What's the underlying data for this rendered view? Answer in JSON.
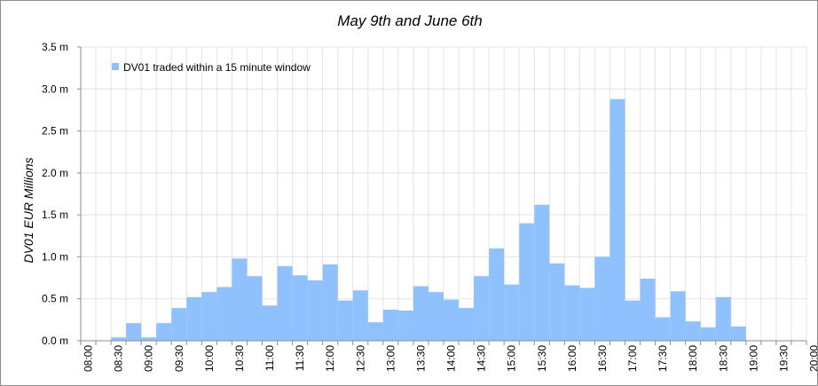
{
  "chart_data": {
    "type": "bar",
    "title": "May 9th and June 6th",
    "xlabel": "",
    "ylabel": "DV01 EUR Millions",
    "ylim": [
      0,
      3.5
    ],
    "y_ticks": [
      "0.0 m",
      "0.5 m",
      "1.0 m",
      "1.5 m",
      "2.0 m",
      "2.5 m",
      "3.0 m",
      "3.5 m"
    ],
    "x_tick_labels": [
      "08:00",
      "08:30",
      "09:00",
      "09:30",
      "10:00",
      "10:30",
      "11:00",
      "11:30",
      "12:00",
      "12:30",
      "13:00",
      "13:30",
      "14:00",
      "14:30",
      "15:00",
      "15:30",
      "16:00",
      "16:30",
      "17:00",
      "17:30",
      "18:00",
      "18:30",
      "19:00",
      "19:30",
      "20:00"
    ],
    "grid": true,
    "legend_position": "top-left",
    "bar_color": "#8fc1ff",
    "series": [
      {
        "name": "DV01 traded within a 15 minute window",
        "x": [
          "08:00",
          "08:15",
          "08:30",
          "08:45",
          "09:00",
          "09:15",
          "09:30",
          "09:45",
          "10:00",
          "10:15",
          "10:30",
          "10:45",
          "11:00",
          "11:15",
          "11:30",
          "11:45",
          "12:00",
          "12:15",
          "12:30",
          "12:45",
          "13:00",
          "13:15",
          "13:30",
          "13:45",
          "14:00",
          "14:15",
          "14:30",
          "14:45",
          "15:00",
          "15:15",
          "15:30",
          "15:45",
          "16:00",
          "16:15",
          "16:30",
          "16:45",
          "17:00",
          "17:15",
          "17:30",
          "17:45",
          "18:00",
          "18:15",
          "18:30",
          "18:45",
          "19:00",
          "19:15",
          "19:30",
          "19:45"
        ],
        "values": [
          0,
          0,
          0.04,
          0.21,
          0.04,
          0.21,
          0.39,
          0.52,
          0.58,
          0.64,
          0.98,
          0.77,
          0.42,
          0.89,
          0.78,
          0.72,
          0.91,
          0.48,
          0.6,
          0.22,
          0.37,
          0.36,
          0.65,
          0.58,
          0.49,
          0.39,
          0.77,
          1.1,
          0.67,
          1.4,
          1.62,
          0.92,
          0.66,
          0.63,
          1.0,
          2.88,
          0.48,
          0.74,
          0.28,
          0.59,
          0.23,
          0.16,
          0.52,
          0.17,
          0,
          0,
          0,
          0
        ]
      }
    ]
  }
}
